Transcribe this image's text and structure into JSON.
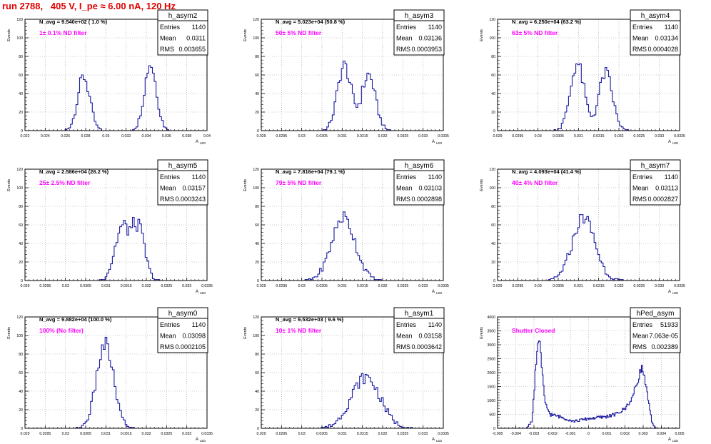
{
  "page_title": "run 2788,   405 V, I_pe ≈ 6.00 nA, 120 Hz",
  "colors": {
    "histogram": "#1a1aa0",
    "annotation": "#ff00ff",
    "title": "#e00000",
    "grid": "#999999"
  },
  "chart_data": [
    {
      "type": "histogram",
      "name": "h_asym2",
      "stats": {
        "Entries": "1140",
        "Mean": "0.0311",
        "RMS": "0.003655"
      },
      "n_avg": "N_avg = 9.540e+02 ( 1.0 %)",
      "filter_label": "1± 0.1% ND filter",
      "xlabel": "A",
      "xlabel_sub": "LED",
      "ylabel": "Events",
      "xlim": [
        0.022,
        0.04
      ],
      "ylim": [
        0,
        120
      ],
      "xticks": [
        "0.022",
        "0.024",
        "0.026",
        "0.028",
        "0.03",
        "0.032",
        "0.034",
        "0.036",
        "0.038",
        "0.04"
      ],
      "yticks": [
        "0",
        "20",
        "40",
        "60",
        "80",
        "100",
        "120"
      ],
      "grid": true,
      "peaks": [
        {
          "center": 0.0278,
          "sigma": 0.0006,
          "height": 58,
          "count": 570
        },
        {
          "center": 0.0344,
          "sigma": 0.0006,
          "height": 72,
          "count": 570
        }
      ],
      "n_bins": 100
    },
    {
      "type": "histogram",
      "name": "h_asym3",
      "stats": {
        "Entries": "1140",
        "Mean": "0.03136",
        "RMS": "0.0003953"
      },
      "n_avg": "N_avg = 5.023e+04 (50.8 %)",
      "filter_label": "50± 5% ND filter",
      "xlabel": "A",
      "xlabel_sub": "LED",
      "ylabel": "Events",
      "xlim": [
        0.029,
        0.0335
      ],
      "ylim": [
        0,
        120
      ],
      "xticks": [
        "0.029",
        "0.0295",
        "0.03",
        "0.0305",
        "0.031",
        "0.0315",
        "0.032",
        "0.0325",
        "0.033",
        "0.0335"
      ],
      "yticks": [
        "0",
        "20",
        "40",
        "60",
        "80",
        "100",
        "120"
      ],
      "grid": true,
      "peaks": [
        {
          "center": 0.03105,
          "sigma": 0.00017,
          "height": 70,
          "count": 570
        },
        {
          "center": 0.03165,
          "sigma": 0.00017,
          "height": 60,
          "count": 570
        }
      ],
      "n_bins": 100
    },
    {
      "type": "histogram",
      "name": "h_asym4",
      "stats": {
        "Entries": "1140",
        "Mean": "0.03134",
        "RMS": "0.0004028"
      },
      "n_avg": "N_avg = 6.250e+04 (63.2 %)",
      "filter_label": "63± 5% ND filter",
      "xlabel": "A",
      "xlabel_sub": "LED",
      "ylabel": "Events",
      "xlim": [
        0.029,
        0.0335
      ],
      "ylim": [
        0,
        120
      ],
      "xticks": [
        "0.029",
        "0.0295",
        "0.03",
        "0.0305",
        "0.031",
        "0.0315",
        "0.032",
        "0.0325",
        "0.033",
        "0.0335"
      ],
      "yticks": [
        "0",
        "20",
        "40",
        "60",
        "80",
        "100",
        "120"
      ],
      "grid": true,
      "peaks": [
        {
          "center": 0.03097,
          "sigma": 0.00017,
          "height": 72,
          "count": 570
        },
        {
          "center": 0.03167,
          "sigma": 0.00017,
          "height": 62,
          "count": 570
        }
      ],
      "n_bins": 100
    },
    {
      "type": "histogram",
      "name": "h_asym5",
      "stats": {
        "Entries": "1140",
        "Mean": "0.03157",
        "RMS": "0.0003243"
      },
      "n_avg": "N_avg = 2.586e+04 (26.2 %)",
      "filter_label": "25± 2.5% ND filter",
      "xlabel": "A",
      "xlabel_sub": "LED",
      "ylabel": "Events",
      "xlim": [
        0.029,
        0.0335
      ],
      "ylim": [
        0,
        120
      ],
      "xticks": [
        "0.029",
        "0.0295",
        "0.03",
        "0.0305",
        "0.031",
        "0.0315",
        "0.032",
        "0.0325",
        "0.033",
        "0.0335"
      ],
      "yticks": [
        "0",
        "20",
        "40",
        "60",
        "80",
        "100",
        "120"
      ],
      "grid": true,
      "peaks": [
        {
          "center": 0.0314,
          "sigma": 0.00018,
          "height": 56,
          "count": 570
        },
        {
          "center": 0.0318,
          "sigma": 0.00016,
          "height": 55,
          "count": 570
        }
      ],
      "n_bins": 100
    },
    {
      "type": "histogram",
      "name": "h_asym6",
      "stats": {
        "Entries": "1140",
        "Mean": "0.03103",
        "RMS": "0.0002898"
      },
      "n_avg": "N_avg = 7.816e+04 (79.1 %)",
      "filter_label": "79± 5% ND filter",
      "xlabel": "A",
      "xlabel_sub": "LED",
      "ylabel": "Events",
      "xlim": [
        0.029,
        0.0335
      ],
      "ylim": [
        0,
        120
      ],
      "xticks": [
        "0.029",
        "0.0295",
        "0.03",
        "0.0305",
        "0.031",
        "0.0315",
        "0.032",
        "0.0325",
        "0.033",
        "0.0335"
      ],
      "yticks": [
        "0",
        "20",
        "40",
        "60",
        "80",
        "100",
        "120"
      ],
      "grid": true,
      "peaks": [
        {
          "center": 0.03103,
          "sigma": 0.00029,
          "height": 68,
          "count": 1140
        }
      ],
      "n_bins": 100
    },
    {
      "type": "histogram",
      "name": "h_asym7",
      "stats": {
        "Entries": "1140",
        "Mean": "0.03113",
        "RMS": "0.0002827"
      },
      "n_avg": "N_avg = 4.093e+04 (41.4 %)",
      "filter_label": "40± 4% ND filter",
      "xlabel": "A",
      "xlabel_sub": "LED",
      "ylabel": "Events",
      "xlim": [
        0.029,
        0.0335
      ],
      "ylim": [
        0,
        120
      ],
      "xticks": [
        "0.029",
        "0.0295",
        "0.03",
        "0.0305",
        "0.031",
        "0.0315",
        "0.032",
        "0.0325",
        "0.033",
        "0.0335"
      ],
      "yticks": [
        "0",
        "20",
        "40",
        "60",
        "80",
        "100",
        "120"
      ],
      "grid": true,
      "peaks": [
        {
          "center": 0.03113,
          "sigma": 0.00028,
          "height": 68,
          "count": 1140
        }
      ],
      "n_bins": 100
    },
    {
      "type": "histogram",
      "name": "h_asym0",
      "stats": {
        "Entries": "1140",
        "Mean": "0.03098",
        "RMS": "0.0002105"
      },
      "n_avg": "N_avg = 9.882e+04 (100.0 %)",
      "filter_label": "100% (No filter)",
      "xlabel": "A",
      "xlabel_sub": "LED",
      "ylabel": "Events",
      "xlim": [
        0.029,
        0.0335
      ],
      "ylim": [
        0,
        120
      ],
      "xticks": [
        "0.029",
        "0.0295",
        "0.03",
        "0.0305",
        "0.031",
        "0.0315",
        "0.032",
        "0.0325",
        "0.033",
        "0.0335"
      ],
      "yticks": [
        "0",
        "20",
        "40",
        "60",
        "80",
        "100",
        "120"
      ],
      "grid": true,
      "peaks": [
        {
          "center": 0.03098,
          "sigma": 0.00021,
          "height": 90,
          "count": 1140
        }
      ],
      "n_bins": 100
    },
    {
      "type": "histogram",
      "name": "h_asym1",
      "stats": {
        "Entries": "1140",
        "Mean": "0.03158",
        "RMS": "0.0003642"
      },
      "n_avg": "N_avg = 9.532e+03 ( 9.6 %)",
      "filter_label": "10± 1% ND filter",
      "xlabel": "A",
      "xlabel_sub": "LED",
      "ylabel": "Events",
      "xlim": [
        0.029,
        0.0335
      ],
      "ylim": [
        0,
        120
      ],
      "xticks": [
        "0.029",
        "0.0295",
        "0.03",
        "0.0305",
        "0.031",
        "0.0315",
        "0.032",
        "0.0325",
        "0.033",
        "0.0335"
      ],
      "yticks": [
        "0",
        "20",
        "40",
        "60",
        "80",
        "100",
        "120"
      ],
      "grid": true,
      "peaks": [
        {
          "center": 0.03158,
          "sigma": 0.00036,
          "height": 55,
          "count": 1140
        }
      ],
      "n_bins": 100
    },
    {
      "type": "histogram",
      "name": "hPed_asym",
      "stats": {
        "Entries": "51933",
        "Mean": "7.063e-05",
        "RMS": "0.002389"
      },
      "n_avg": "",
      "filter_label": "Shutter Closed",
      "xlabel": "A",
      "xlabel_sub": "LED",
      "ylabel": "Events",
      "xlim": [
        -0.005,
        0.005
      ],
      "ylim": [
        0,
        4000
      ],
      "xticks": [
        "-0.005",
        "-0.004",
        "-0.003",
        "-0.002",
        "-0.001",
        "0",
        "0.001",
        "0.002",
        "0.003",
        "0.004",
        "0.005"
      ],
      "yticks": [
        "0",
        "500",
        "1000",
        "1500",
        "2000",
        "2500",
        "3000",
        "3500",
        "4000"
      ],
      "grid": true,
      "profile": [
        [
          -0.005,
          0
        ],
        [
          -0.0034,
          0
        ],
        [
          -0.0031,
          300
        ],
        [
          -0.0029,
          2200
        ],
        [
          -0.0027,
          3400
        ],
        [
          -0.0026,
          2400
        ],
        [
          -0.0024,
          900
        ],
        [
          -0.0021,
          500
        ],
        [
          -0.0015,
          400
        ],
        [
          -0.0008,
          250
        ],
        [
          0.0,
          350
        ],
        [
          0.0008,
          400
        ],
        [
          0.0015,
          500
        ],
        [
          0.002,
          700
        ],
        [
          0.0024,
          1100
        ],
        [
          0.0027,
          1700
        ],
        [
          0.0029,
          2200
        ],
        [
          0.0031,
          1800
        ],
        [
          0.0033,
          900
        ],
        [
          0.0035,
          150
        ],
        [
          0.0037,
          0
        ],
        [
          0.005,
          0
        ]
      ],
      "n_bins": 200
    }
  ]
}
